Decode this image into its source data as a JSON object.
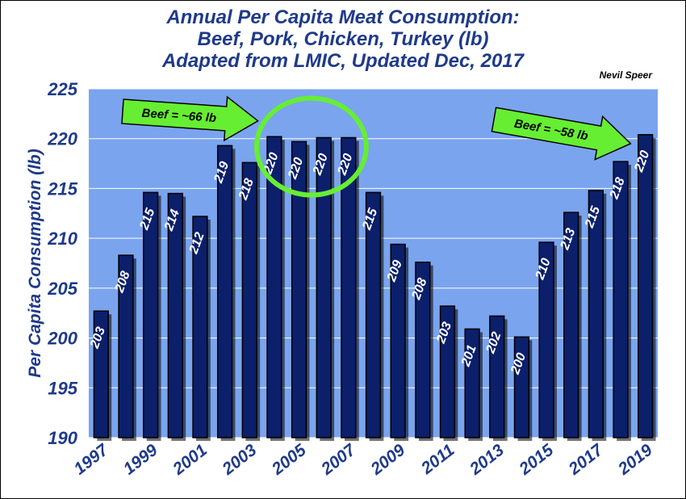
{
  "chart_data": {
    "type": "bar",
    "title_lines": [
      "Annual Per Capita Meat Consumption:",
      "Beef, Pork, Chicken, Turkey (lb)",
      "Adapted from LMIC, Updated Dec, 2017"
    ],
    "credit": "Nevil Speer",
    "ylabel": "Per Capita Consumption (lb)",
    "ylim": [
      190,
      225
    ],
    "yticks": [
      190,
      195,
      200,
      205,
      210,
      215,
      220,
      225
    ],
    "categories": [
      "1997",
      "1998",
      "1999",
      "2000",
      "2001",
      "2002",
      "2003",
      "2004",
      "2005",
      "2006",
      "2007",
      "2008",
      "2009",
      "2010",
      "2011",
      "2012",
      "2013",
      "2014",
      "2015",
      "2016",
      "2017",
      "2018",
      "2019"
    ],
    "xtick_labels": [
      "1997",
      "1999",
      "2001",
      "2003",
      "2005",
      "2007",
      "2009",
      "2011",
      "2013",
      "2015",
      "2017",
      "2019"
    ],
    "values": [
      202.7,
      208.3,
      214.6,
      214.5,
      212.2,
      219.3,
      217.6,
      220.2,
      219.7,
      220.1,
      220.1,
      214.6,
      209.4,
      207.6,
      203.2,
      200.9,
      202.2,
      200.1,
      209.6,
      212.6,
      214.8,
      217.7,
      220.4
    ],
    "data_labels": [
      "203",
      "208",
      "215",
      "214",
      "212",
      "219",
      "218",
      "220",
      "220",
      "220",
      "220",
      "215",
      "209",
      "208",
      "203",
      "201",
      "202",
      "200",
      "210",
      "213",
      "215",
      "218",
      "220"
    ],
    "grid": true,
    "colors": {
      "bar": "#0b1f6b",
      "plot_bg": "#7aa4ee",
      "arrow": "#66ee33",
      "circle": "#66ee33",
      "text": "#1f3a8a"
    },
    "annotations": [
      {
        "text": "Beef = ~66 lb",
        "type": "arrow"
      },
      {
        "text": "Beef = ~58 lb",
        "type": "arrow"
      },
      {
        "type": "circle",
        "years": [
          "2004",
          "2007"
        ]
      }
    ]
  }
}
